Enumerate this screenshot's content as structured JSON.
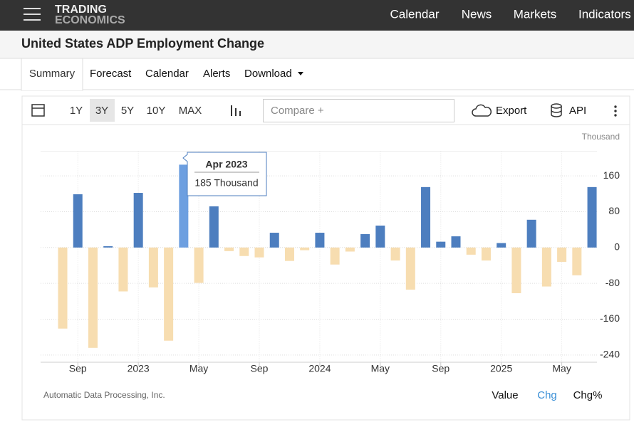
{
  "header": {
    "logo": [
      "TRADING",
      "ECONOMICS"
    ],
    "nav": [
      "Calendar",
      "News",
      "Markets",
      "Indicators"
    ]
  },
  "title": "United States ADP Employment Change",
  "tabs": [
    "Summary",
    "Forecast",
    "Calendar",
    "Alerts",
    "Download"
  ],
  "toolbar": {
    "ranges": [
      "1Y",
      "3Y",
      "5Y",
      "10Y",
      "MAX"
    ],
    "compare": "Compare +",
    "export": "Export",
    "api": "API"
  },
  "chart_data": {
    "type": "bar",
    "unit": "Thousand",
    "source": "Automatic Data Processing, Inc.",
    "categories": [
      null,
      "Sep",
      null,
      null,
      null,
      "2023",
      null,
      null,
      null,
      "May",
      null,
      null,
      null,
      "Sep",
      null,
      null,
      null,
      "2024",
      null,
      null,
      null,
      "May",
      null,
      null,
      null,
      "Sep",
      null,
      null,
      null,
      "2025",
      null,
      null,
      null,
      "May",
      null,
      null
    ],
    "values": [
      -181,
      119,
      -224,
      3,
      -98,
      122,
      -89,
      -208,
      185,
      -79,
      92,
      -8,
      -19,
      -22,
      33,
      -30,
      -6,
      33,
      -38,
      -9,
      30,
      49,
      -29,
      -94,
      135,
      13,
      25,
      -16,
      -29,
      10,
      -102,
      62,
      -87,
      -32,
      -62,
      135
    ],
    "color": "#4d7ebf",
    "negative_color": "#f7ddb0",
    "highlight_color": "#6d9fe0",
    "ylim": [
      -245,
      215
    ],
    "yticks": [
      160,
      80,
      0,
      -80,
      -160,
      -240
    ],
    "grid": true,
    "tooltip": {
      "index": 8,
      "title": "Apr 2023",
      "label": "185 Thousand"
    },
    "modes": [
      "Value",
      "Chg",
      "Chg%"
    ]
  }
}
